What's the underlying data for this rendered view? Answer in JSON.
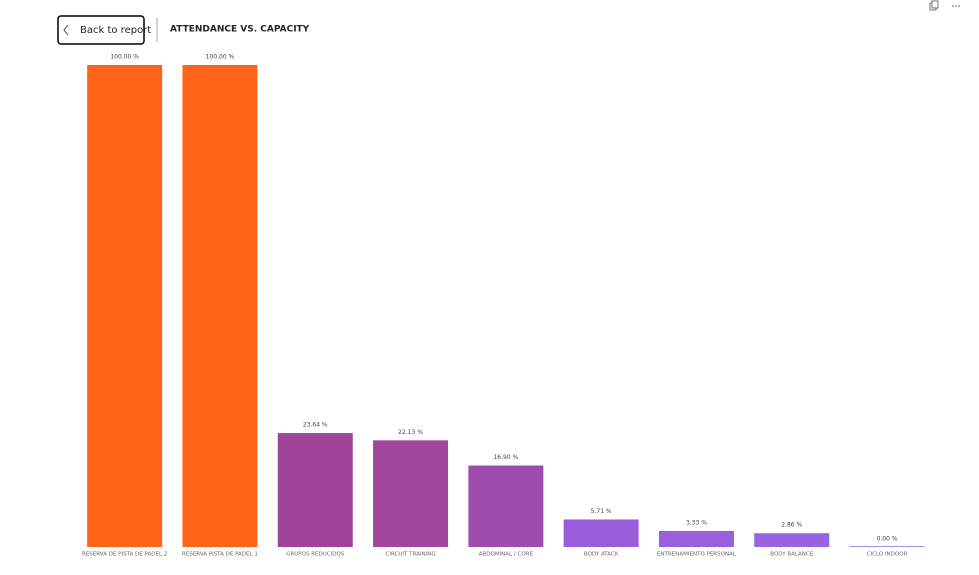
{
  "header": {
    "back_button": "Back to report"
  },
  "chart_data": {
    "type": "bar",
    "title": "ATTENDANCE VS. CAPACITY",
    "categories": [
      "RESERVA DE PISTA DE PADEL 2",
      "RESERVA PISTA DE PADEL 1",
      "GRUPOS REDUCIDOS",
      "CIRCUIT TRAINING",
      "ABDOMINAL / CORE",
      "BODY ATACK",
      "ENTRENAMIENTO PERSONAL",
      "BODY BALANCE",
      "CICLO INDOOR"
    ],
    "values": [
      100,
      100,
      23.64,
      22.13,
      16.9,
      5.71,
      3.33,
      2.86,
      0
    ],
    "value_labels": [
      "100.00 %",
      "100.00 %",
      "23.64 %",
      "22.13 %",
      "16.90 %",
      "5.71 %",
      "3.33 %",
      "2.86 %",
      "0.00 %"
    ],
    "colors": [
      "#ff6418",
      "#ff6418",
      "#a0449a",
      "#a1479c",
      "#9e4dad",
      "#9a5cd8",
      "#9a60dc",
      "#9a63df",
      "#a88bea"
    ]
  }
}
